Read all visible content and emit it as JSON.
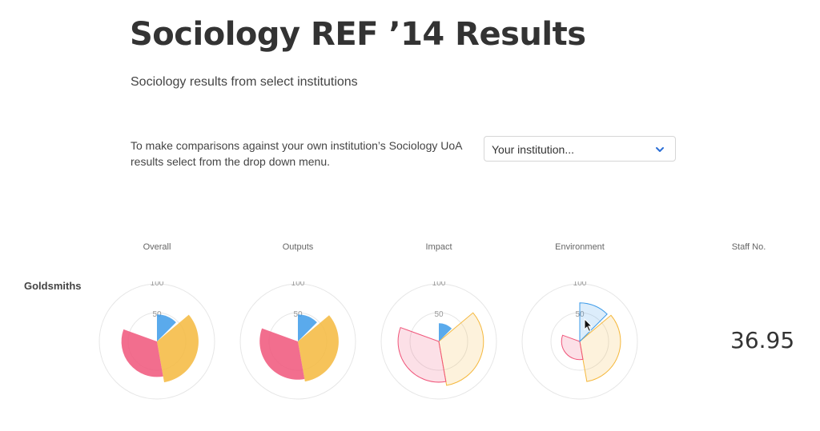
{
  "header": {
    "title": "Sociology REF ’14 Results",
    "subtitle": "Sociology results from select institutions"
  },
  "comparison": {
    "instructions": "To make comparisons against your own institution’s Sociology UoA results select from the drop down menu.",
    "select_value": "Your institution...",
    "select_icon": "chevron-down-icon"
  },
  "columns": [
    "Overall",
    "Outputs",
    "Impact",
    "Environment",
    "Staff No."
  ],
  "rows": [
    {
      "institution": "Goldsmiths",
      "staff_no": "36.95"
    }
  ],
  "colors": {
    "four_star": "#f5b83d",
    "three_star": "#f0557a",
    "two_star": "#3d9be9",
    "ring": "#e6e6e6"
  },
  "tick_labels": [
    "100",
    "50"
  ],
  "chart_data": [
    {
      "type": "radial",
      "title": "Overall",
      "max": 100,
      "series": [
        {
          "value": 52,
          "color": "#f5b83d"
        },
        {
          "value": 38,
          "color": "#f0557a"
        },
        {
          "value": 22,
          "color": "#3d9be9"
        }
      ]
    },
    {
      "type": "radial",
      "title": "Outputs",
      "max": 100,
      "series": [
        {
          "value": 50,
          "color": "#f5b83d"
        },
        {
          "value": 44,
          "color": "#f0557a"
        },
        {
          "value": 22,
          "color": "#3d9be9"
        }
      ]
    },
    {
      "type": "radial",
      "title": "Impact",
      "max": 100,
      "series": [
        {
          "value": 60,
          "color": "#f5b83d",
          "light": true
        },
        {
          "value": 50,
          "color": "#f0557a",
          "light": true
        },
        {
          "value": 10,
          "color": "#3d9be9"
        }
      ]
    },
    {
      "type": "radial",
      "title": "Environment",
      "max": 100,
      "series": [
        {
          "value": 50,
          "color": "#f5b83d",
          "light": true
        },
        {
          "value": 10,
          "color": "#f0557a",
          "light": true
        },
        {
          "value": 45,
          "color": "#3d9be9",
          "light": true
        }
      ]
    }
  ]
}
